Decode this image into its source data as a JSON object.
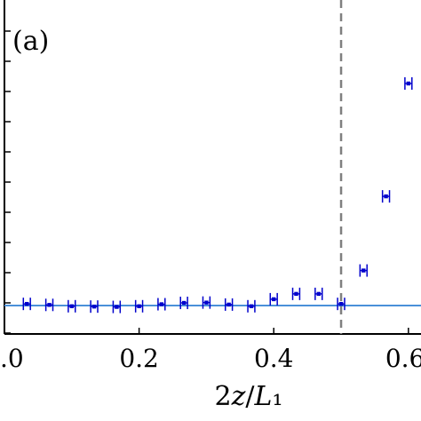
{
  "chart_data": {
    "type": "scatter",
    "panel_label": "(a)",
    "xlabel": "2z/L₁",
    "xlim": [
      0.0,
      0.62
    ],
    "ylim": [
      0.0,
      1.0
    ],
    "x_tick_values": [
      0.0,
      0.2,
      0.4,
      0.6
    ],
    "x_tick_labels": [
      ".0",
      "0.2",
      "0.4",
      "0.6"
    ],
    "y_tick_count": 12,
    "grid": false,
    "reference_line": {
      "y": 0.085,
      "color": "#4a90d9"
    },
    "vline": {
      "x": 0.5,
      "color": "#808080",
      "style": "dashed"
    },
    "series": [
      {
        "color": "#0000cc",
        "x": [
          0.0333,
          0.0667,
          0.1,
          0.1333,
          0.1667,
          0.2,
          0.2333,
          0.2667,
          0.3,
          0.3333,
          0.3667,
          0.4,
          0.4333,
          0.4667,
          0.5,
          0.5333,
          0.5667,
          0.6
        ],
        "y": [
          0.09,
          0.087,
          0.083,
          0.082,
          0.081,
          0.083,
          0.089,
          0.093,
          0.094,
          0.088,
          0.083,
          0.104,
          0.12,
          0.12,
          0.09,
          0.19,
          0.412,
          0.75
        ],
        "xerr": 0.0052
      }
    ]
  }
}
